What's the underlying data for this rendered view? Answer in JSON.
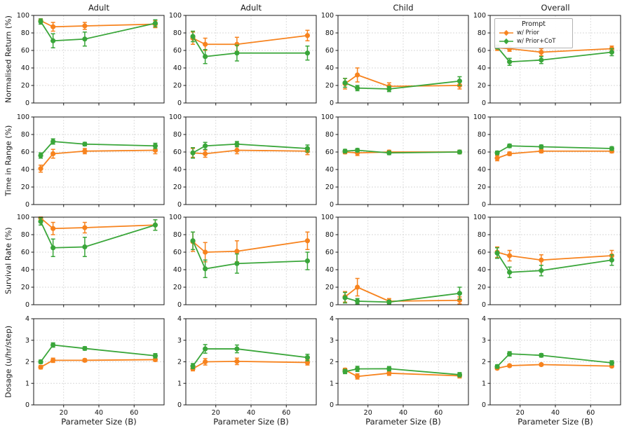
{
  "figure": {
    "xlabel": "Parameter Size (B)",
    "col_titles": [
      "Adult",
      "Adult",
      "Child",
      "Overall"
    ],
    "row_labels": [
      "Normalised Return (%)",
      "Time in Range (%)",
      "Survival Rate (%)",
      "Dosage (u/hr/step)"
    ],
    "legend": {
      "title": "Prompt",
      "entries": [
        {
          "label": "w/ Prior",
          "color": "#f7831e"
        },
        {
          "label": "w/ Prior+CoT",
          "color": "#3aa63a"
        }
      ]
    },
    "grid_color": "#d9d9d9",
    "axis_color": "#1a1a1a"
  },
  "chart_data": [
    {
      "type": "line",
      "row": 0,
      "col": 0,
      "title": "Adult",
      "ylabel": "Normalised Return (%)",
      "xlabel": "Parameter Size (B)",
      "xlim": [
        3,
        77
      ],
      "ylim": [
        0,
        100
      ],
      "xticks": [
        20,
        40,
        60
      ],
      "yticks": [
        0,
        20,
        40,
        60,
        80,
        100
      ],
      "x": [
        7,
        14,
        32,
        72
      ],
      "series": [
        {
          "name": "w/ Prior",
          "values": [
            94,
            87,
            88,
            90
          ],
          "yerr": [
            2,
            5,
            4,
            4
          ]
        },
        {
          "name": "w/ Prior+CoT",
          "values": [
            93,
            71,
            73,
            91
          ],
          "yerr": [
            3,
            8,
            8,
            4
          ]
        }
      ]
    },
    {
      "type": "line",
      "row": 0,
      "col": 1,
      "title": "Adult",
      "ylabel": "Normalised Return (%)",
      "xlabel": "Parameter Size (B)",
      "xlim": [
        3,
        77
      ],
      "ylim": [
        0,
        100
      ],
      "xticks": [
        20,
        40,
        60
      ],
      "yticks": [
        0,
        20,
        40,
        60,
        80,
        100
      ],
      "x": [
        7,
        14,
        32,
        72
      ],
      "series": [
        {
          "name": "w/ Prior",
          "values": [
            74,
            67,
            67,
            77
          ],
          "yerr": [
            7,
            7,
            8,
            6
          ]
        },
        {
          "name": "w/ Prior+CoT",
          "values": [
            76,
            53,
            57,
            57
          ],
          "yerr": [
            6,
            8,
            9,
            8
          ]
        }
      ]
    },
    {
      "type": "line",
      "row": 0,
      "col": 2,
      "title": "Child",
      "ylabel": "Normalised Return (%)",
      "xlabel": "Parameter Size (B)",
      "xlim": [
        3,
        77
      ],
      "ylim": [
        0,
        100
      ],
      "xticks": [
        20,
        40,
        60
      ],
      "yticks": [
        0,
        20,
        40,
        60,
        80,
        100
      ],
      "x": [
        7,
        14,
        32,
        72
      ],
      "series": [
        {
          "name": "w/ Prior",
          "values": [
            22,
            32,
            19,
            20
          ],
          "yerr": [
            6,
            8,
            4,
            4
          ]
        },
        {
          "name": "w/ Prior+CoT",
          "values": [
            23,
            17,
            16,
            25
          ],
          "yerr": [
            5,
            3,
            3,
            5
          ]
        }
      ]
    },
    {
      "type": "line",
      "row": 0,
      "col": 3,
      "title": "Overall",
      "ylabel": "Normalised Return (%)",
      "xlabel": "Parameter Size (B)",
      "xlim": [
        3,
        77
      ],
      "ylim": [
        0,
        100
      ],
      "xticks": [
        20,
        40,
        60
      ],
      "yticks": [
        0,
        20,
        40,
        60,
        80,
        100
      ],
      "x": [
        7,
        14,
        32,
        72
      ],
      "series": [
        {
          "name": "w/ Prior",
          "values": [
            63,
            62,
            58,
            62
          ],
          "yerr": [
            3,
            3,
            4,
            3
          ]
        },
        {
          "name": "w/ Prior+CoT",
          "values": [
            64,
            47,
            49,
            58
          ],
          "yerr": [
            2,
            4,
            4,
            4
          ]
        }
      ]
    },
    {
      "type": "line",
      "row": 1,
      "col": 0,
      "title": "Adult",
      "ylabel": "Time in Range (%)",
      "xlabel": "Parameter Size (B)",
      "xlim": [
        3,
        77
      ],
      "ylim": [
        0,
        100
      ],
      "xticks": [
        20,
        40,
        60
      ],
      "yticks": [
        0,
        20,
        40,
        60,
        80,
        100
      ],
      "x": [
        7,
        14,
        32,
        72
      ],
      "series": [
        {
          "name": "w/ Prior",
          "values": [
            41,
            58,
            61,
            62
          ],
          "yerr": [
            4,
            5,
            3,
            4
          ]
        },
        {
          "name": "w/ Prior+CoT",
          "values": [
            56,
            72,
            69,
            67
          ],
          "yerr": [
            3,
            3,
            2,
            3
          ]
        }
      ]
    },
    {
      "type": "line",
      "row": 1,
      "col": 1,
      "title": "Adult",
      "ylabel": "Time in Range (%)",
      "xlabel": "Parameter Size (B)",
      "xlim": [
        3,
        77
      ],
      "ylim": [
        0,
        100
      ],
      "xticks": [
        20,
        40,
        60
      ],
      "yticks": [
        0,
        20,
        40,
        60,
        80,
        100
      ],
      "x": [
        7,
        14,
        32,
        72
      ],
      "series": [
        {
          "name": "w/ Prior",
          "values": [
            59,
            58,
            62,
            61
          ],
          "yerr": [
            5,
            4,
            4,
            4
          ]
        },
        {
          "name": "w/ Prior+CoT",
          "values": [
            59,
            67,
            69,
            64
          ],
          "yerr": [
            6,
            4,
            3,
            4
          ]
        }
      ]
    },
    {
      "type": "line",
      "row": 1,
      "col": 2,
      "title": "Child",
      "ylabel": "Time in Range (%)",
      "xlabel": "Parameter Size (B)",
      "xlim": [
        3,
        77
      ],
      "ylim": [
        0,
        100
      ],
      "xticks": [
        20,
        40,
        60
      ],
      "yticks": [
        0,
        20,
        40,
        60,
        80,
        100
      ],
      "x": [
        7,
        14,
        32,
        72
      ],
      "series": [
        {
          "name": "w/ Prior",
          "values": [
            60,
            59,
            60,
            60
          ],
          "yerr": [
            2,
            3,
            2,
            2
          ]
        },
        {
          "name": "w/ Prior+CoT",
          "values": [
            61,
            62,
            59,
            60
          ],
          "yerr": [
            2,
            2,
            2,
            2
          ]
        }
      ]
    },
    {
      "type": "line",
      "row": 1,
      "col": 3,
      "title": "Overall",
      "ylabel": "Time in Range (%)",
      "xlabel": "Parameter Size (B)",
      "xlim": [
        3,
        77
      ],
      "ylim": [
        0,
        100
      ],
      "xticks": [
        20,
        40,
        60
      ],
      "yticks": [
        0,
        20,
        40,
        60,
        80,
        100
      ],
      "x": [
        7,
        14,
        32,
        72
      ],
      "series": [
        {
          "name": "w/ Prior",
          "values": [
            53,
            58,
            61,
            61
          ],
          "yerr": [
            3,
            2,
            2,
            2
          ]
        },
        {
          "name": "w/ Prior+CoT",
          "values": [
            59,
            67,
            66,
            64
          ],
          "yerr": [
            2,
            2,
            2,
            2
          ]
        }
      ]
    },
    {
      "type": "line",
      "row": 2,
      "col": 0,
      "title": "Adult",
      "ylabel": "Survival Rate (%)",
      "xlabel": "Parameter Size (B)",
      "xlim": [
        3,
        77
      ],
      "ylim": [
        0,
        100
      ],
      "xticks": [
        20,
        40,
        60
      ],
      "yticks": [
        0,
        20,
        40,
        60,
        80,
        100
      ],
      "x": [
        7,
        14,
        32,
        72
      ],
      "series": [
        {
          "name": "w/ Prior",
          "values": [
            99,
            87,
            88,
            91
          ],
          "yerr": [
            2,
            7,
            6,
            6
          ]
        },
        {
          "name": "w/ Prior+CoT",
          "values": [
            95,
            65,
            66,
            91
          ],
          "yerr": [
            4,
            10,
            11,
            6
          ]
        }
      ]
    },
    {
      "type": "line",
      "row": 2,
      "col": 1,
      "title": "Adult",
      "ylabel": "Survival Rate (%)",
      "xlabel": "Parameter Size (B)",
      "xlim": [
        3,
        77
      ],
      "ylim": [
        0,
        100
      ],
      "xticks": [
        20,
        40,
        60
      ],
      "yticks": [
        0,
        20,
        40,
        60,
        80,
        100
      ],
      "x": [
        7,
        14,
        32,
        72
      ],
      "series": [
        {
          "name": "w/ Prior",
          "values": [
            72,
            60,
            61,
            73
          ],
          "yerr": [
            11,
            11,
            12,
            10
          ]
        },
        {
          "name": "w/ Prior+CoT",
          "values": [
            73,
            41,
            47,
            50
          ],
          "yerr": [
            10,
            10,
            11,
            10
          ]
        }
      ]
    },
    {
      "type": "line",
      "row": 2,
      "col": 2,
      "title": "Child",
      "ylabel": "Survival Rate (%)",
      "xlabel": "Parameter Size (B)",
      "xlim": [
        3,
        77
      ],
      "ylim": [
        0,
        100
      ],
      "xticks": [
        20,
        40,
        60
      ],
      "yticks": [
        0,
        20,
        40,
        60,
        80,
        100
      ],
      "x": [
        7,
        14,
        32,
        72
      ],
      "series": [
        {
          "name": "w/ Prior",
          "values": [
            9,
            20,
            4,
            5
          ],
          "yerr": [
            6,
            10,
            3,
            4
          ]
        },
        {
          "name": "w/ Prior+CoT",
          "values": [
            8,
            4,
            3,
            13
          ],
          "yerr": [
            6,
            3,
            2,
            7
          ]
        }
      ]
    },
    {
      "type": "line",
      "row": 2,
      "col": 3,
      "title": "Overall",
      "ylabel": "Survival Rate (%)",
      "xlabel": "Parameter Size (B)",
      "xlim": [
        3,
        77
      ],
      "ylim": [
        0,
        100
      ],
      "xticks": [
        20,
        40,
        60
      ],
      "yticks": [
        0,
        20,
        40,
        60,
        80,
        100
      ],
      "x": [
        7,
        14,
        32,
        72
      ],
      "series": [
        {
          "name": "w/ Prior",
          "values": [
            60,
            56,
            51,
            56
          ],
          "yerr": [
            6,
            6,
            6,
            6
          ]
        },
        {
          "name": "w/ Prior+CoT",
          "values": [
            59,
            37,
            39,
            51
          ],
          "yerr": [
            6,
            6,
            6,
            6
          ]
        }
      ]
    },
    {
      "type": "line",
      "row": 3,
      "col": 0,
      "title": "Adult",
      "ylabel": "Dosage (u/hr/step)",
      "xlabel": "Parameter Size (B)",
      "xlim": [
        3,
        77
      ],
      "ylim": [
        0,
        4
      ],
      "xticks": [
        20,
        40,
        60
      ],
      "yticks": [
        0,
        1,
        2,
        3,
        4
      ],
      "x": [
        7,
        14,
        32,
        72
      ],
      "series": [
        {
          "name": "w/ Prior",
          "values": [
            1.75,
            2.07,
            2.07,
            2.1
          ],
          "yerr": [
            0.08,
            0.1,
            0.07,
            0.08
          ]
        },
        {
          "name": "w/ Prior+CoT",
          "values": [
            2.0,
            2.78,
            2.62,
            2.28
          ],
          "yerr": [
            0.08,
            0.1,
            0.08,
            0.1
          ]
        }
      ]
    },
    {
      "type": "line",
      "row": 3,
      "col": 1,
      "title": "Adult",
      "ylabel": "Dosage (u/hr/step)",
      "xlabel": "Parameter Size (B)",
      "xlim": [
        3,
        77
      ],
      "ylim": [
        0,
        4
      ],
      "xticks": [
        20,
        40,
        60
      ],
      "yticks": [
        0,
        1,
        2,
        3,
        4
      ],
      "x": [
        7,
        14,
        32,
        72
      ],
      "series": [
        {
          "name": "w/ Prior",
          "values": [
            1.68,
            2.0,
            2.02,
            1.97
          ],
          "yerr": [
            0.1,
            0.15,
            0.15,
            0.12
          ]
        },
        {
          "name": "w/ Prior+CoT",
          "values": [
            1.8,
            2.6,
            2.6,
            2.2
          ],
          "yerr": [
            0.12,
            0.2,
            0.18,
            0.15
          ]
        }
      ]
    },
    {
      "type": "line",
      "row": 3,
      "col": 2,
      "title": "Child",
      "ylabel": "Dosage (u/hr/step)",
      "xlabel": "Parameter Size (B)",
      "xlim": [
        3,
        77
      ],
      "ylim": [
        0,
        4
      ],
      "xticks": [
        20,
        40,
        60
      ],
      "yticks": [
        0,
        1,
        2,
        3,
        4
      ],
      "x": [
        7,
        14,
        32,
        72
      ],
      "series": [
        {
          "name": "w/ Prior",
          "values": [
            1.62,
            1.32,
            1.47,
            1.35
          ],
          "yerr": [
            0.08,
            0.12,
            0.1,
            0.1
          ]
        },
        {
          "name": "w/ Prior+CoT",
          "values": [
            1.55,
            1.67,
            1.68,
            1.4
          ],
          "yerr": [
            0.1,
            0.12,
            0.1,
            0.1
          ]
        }
      ]
    },
    {
      "type": "line",
      "row": 3,
      "col": 3,
      "title": "Overall",
      "ylabel": "Dosage (u/hr/step)",
      "xlabel": "Parameter Size (B)",
      "xlim": [
        3,
        77
      ],
      "ylim": [
        0,
        4
      ],
      "xticks": [
        20,
        40,
        60
      ],
      "yticks": [
        0,
        1,
        2,
        3,
        4
      ],
      "x": [
        7,
        14,
        32,
        72
      ],
      "series": [
        {
          "name": "w/ Prior",
          "values": [
            1.7,
            1.82,
            1.87,
            1.8
          ],
          "yerr": [
            0.06,
            0.06,
            0.06,
            0.06
          ]
        },
        {
          "name": "w/ Prior+CoT",
          "values": [
            1.78,
            2.37,
            2.3,
            1.95
          ],
          "yerr": [
            0.08,
            0.1,
            0.08,
            0.1
          ]
        }
      ]
    }
  ]
}
